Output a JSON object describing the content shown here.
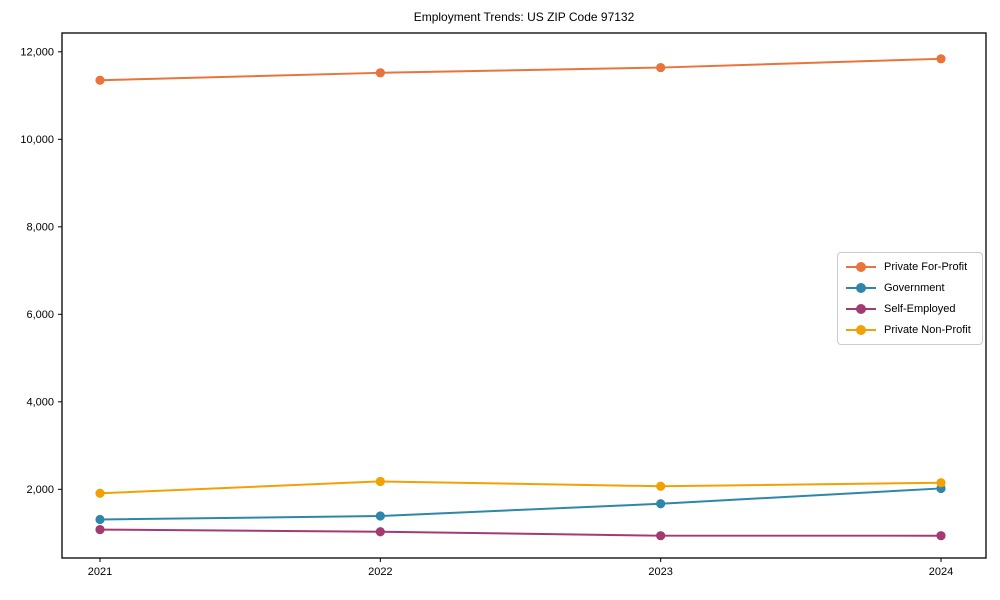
{
  "chart_data": {
    "type": "line",
    "title": "Employment Trends: US ZIP Code 97132",
    "xlabel": "",
    "ylabel": "",
    "x": [
      "2021",
      "2022",
      "2023",
      "2024"
    ],
    "series": [
      {
        "name": "Private For-Profit",
        "color": "#E8743B",
        "values": [
          11350,
          11520,
          11640,
          11840
        ]
      },
      {
        "name": "Government",
        "color": "#2E86AB",
        "values": [
          1310,
          1390,
          1670,
          2020
        ]
      },
      {
        "name": "Self-Employed",
        "color": "#A23B72",
        "values": [
          1080,
          1030,
          940,
          940
        ]
      },
      {
        "name": "Private Non-Profit",
        "color": "#F2A104",
        "values": [
          1910,
          2180,
          2070,
          2150
        ]
      }
    ],
    "yticks": [
      {
        "value": 2000,
        "label": "2,000"
      },
      {
        "value": 4000,
        "label": "4,000"
      },
      {
        "value": 6000,
        "label": "6,000"
      },
      {
        "value": 8000,
        "label": "8,000"
      },
      {
        "value": 10000,
        "label": "10,000"
      },
      {
        "value": 12000,
        "label": "12,000"
      }
    ],
    "ylim": [
      430,
      12430
    ],
    "grid": false,
    "legend_position": "center right",
    "marker": "circle",
    "axis_color": "#000000",
    "background_color": "#ffffff"
  }
}
